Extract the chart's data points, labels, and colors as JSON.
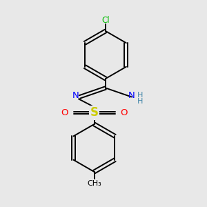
{
  "bg_color": "#e8e8e8",
  "atom_colors": {
    "C": "#000000",
    "N": "#0000ff",
    "O": "#ff0000",
    "S": "#cccc00",
    "Cl": "#00bb00",
    "H": "#4488aa"
  },
  "bond_color": "#000000",
  "figsize": [
    3.0,
    3.0
  ],
  "dpi": 100
}
